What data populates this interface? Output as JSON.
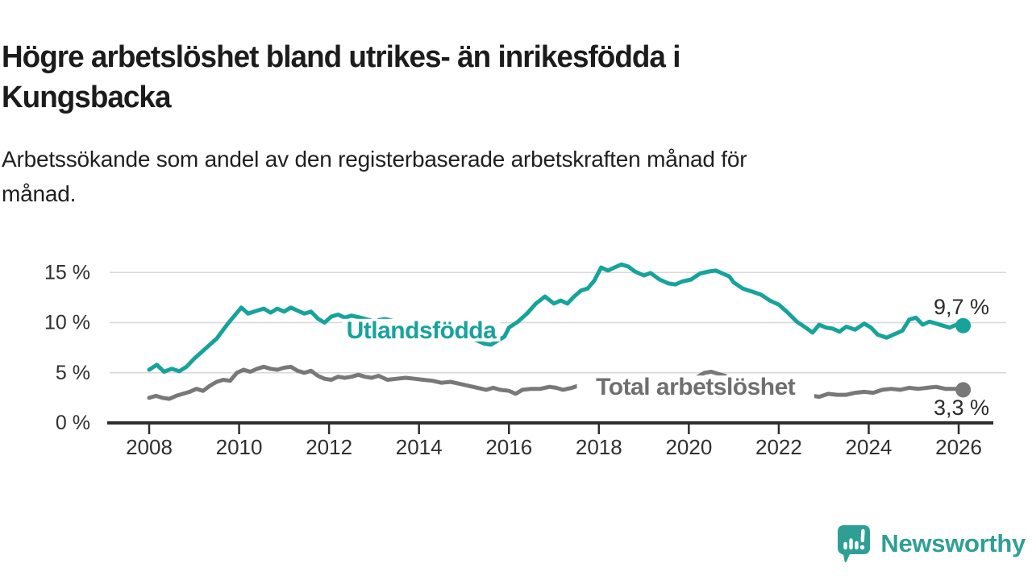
{
  "header": {
    "title_lines": [
      "Högre arbetslöshet bland utrikes- än inrikesfödda i",
      "Kungsbacka"
    ],
    "subtitle_lines": [
      "Arbetssökande som andel av den registerbaserade arbetskraften månad för",
      "månad."
    ]
  },
  "chart_data": {
    "type": "line",
    "x_axis": {
      "unit": "year",
      "ticks": [
        2008,
        2010,
        2012,
        2014,
        2016,
        2018,
        2020,
        2022,
        2024,
        2026
      ],
      "range": [
        2007.1,
        2026.8
      ]
    },
    "y_axis": {
      "unit": "%",
      "tick_labels": [
        {
          "value": 0,
          "label": "0 %"
        },
        {
          "value": 5,
          "label": "5 %"
        },
        {
          "value": 10,
          "label": "10 %"
        },
        {
          "value": 15,
          "label": "15 %"
        }
      ],
      "gridlines": [
        5,
        10,
        15
      ],
      "range": [
        0,
        16.5
      ],
      "grid_on": true
    },
    "series": [
      {
        "name": "Utlandsfödda",
        "color": "#16a39b",
        "line_label": {
          "text": "Utlandsfödda",
          "x": 2014.05,
          "y": 9.25
        },
        "end_label": {
          "text": "9,7 %",
          "position": "above"
        },
        "end_value": 9.7,
        "points": [
          [
            2008.0,
            5.3
          ],
          [
            2008.17,
            5.8
          ],
          [
            2008.33,
            5.1
          ],
          [
            2008.5,
            5.4
          ],
          [
            2008.67,
            5.15
          ],
          [
            2008.83,
            5.6
          ],
          [
            2009.0,
            6.4
          ],
          [
            2009.25,
            7.4
          ],
          [
            2009.5,
            8.4
          ],
          [
            2009.75,
            9.9
          ],
          [
            2010.05,
            11.5
          ],
          [
            2010.2,
            10.9
          ],
          [
            2010.4,
            11.2
          ],
          [
            2010.55,
            11.4
          ],
          [
            2010.7,
            11.0
          ],
          [
            2010.85,
            11.4
          ],
          [
            2011.0,
            11.1
          ],
          [
            2011.15,
            11.5
          ],
          [
            2011.3,
            11.2
          ],
          [
            2011.45,
            10.9
          ],
          [
            2011.6,
            11.1
          ],
          [
            2011.75,
            10.4
          ],
          [
            2011.9,
            10.0
          ],
          [
            2012.05,
            10.6
          ],
          [
            2012.2,
            10.8
          ],
          [
            2012.35,
            10.5
          ],
          [
            2012.5,
            10.7
          ],
          [
            2012.7,
            10.5
          ],
          [
            2012.85,
            10.3
          ],
          [
            2013.0,
            10.2
          ],
          [
            2013.25,
            10.35
          ],
          [
            2013.5,
            10.1
          ],
          [
            2013.75,
            9.8
          ],
          [
            2014.0,
            9.6
          ],
          [
            2014.25,
            9.4
          ],
          [
            2014.5,
            9.2
          ],
          [
            2014.75,
            9.0
          ],
          [
            2015.0,
            8.8
          ],
          [
            2015.25,
            8.3
          ],
          [
            2015.45,
            7.9
          ],
          [
            2015.6,
            7.8
          ],
          [
            2015.75,
            8.2
          ],
          [
            2015.9,
            8.6
          ],
          [
            2016.0,
            9.5
          ],
          [
            2016.2,
            10.1
          ],
          [
            2016.4,
            10.9
          ],
          [
            2016.6,
            11.9
          ],
          [
            2016.8,
            12.6
          ],
          [
            2017.0,
            11.9
          ],
          [
            2017.15,
            12.2
          ],
          [
            2017.3,
            11.9
          ],
          [
            2017.45,
            12.6
          ],
          [
            2017.6,
            13.2
          ],
          [
            2017.75,
            13.4
          ],
          [
            2017.9,
            14.2
          ],
          [
            2018.05,
            15.5
          ],
          [
            2018.2,
            15.2
          ],
          [
            2018.35,
            15.5
          ],
          [
            2018.5,
            15.8
          ],
          [
            2018.65,
            15.6
          ],
          [
            2018.8,
            15.1
          ],
          [
            2019.0,
            14.7
          ],
          [
            2019.15,
            14.95
          ],
          [
            2019.35,
            14.3
          ],
          [
            2019.55,
            13.9
          ],
          [
            2019.7,
            13.8
          ],
          [
            2019.85,
            14.1
          ],
          [
            2020.05,
            14.3
          ],
          [
            2020.25,
            14.9
          ],
          [
            2020.45,
            15.1
          ],
          [
            2020.6,
            15.2
          ],
          [
            2020.75,
            14.9
          ],
          [
            2020.9,
            14.6
          ],
          [
            2021.0,
            14.0
          ],
          [
            2021.2,
            13.4
          ],
          [
            2021.4,
            13.1
          ],
          [
            2021.6,
            12.8
          ],
          [
            2021.8,
            12.2
          ],
          [
            2022.0,
            11.8
          ],
          [
            2022.2,
            11.0
          ],
          [
            2022.4,
            10.1
          ],
          [
            2022.6,
            9.5
          ],
          [
            2022.75,
            9.0
          ],
          [
            2022.9,
            9.8
          ],
          [
            2023.05,
            9.5
          ],
          [
            2023.2,
            9.4
          ],
          [
            2023.35,
            9.1
          ],
          [
            2023.5,
            9.6
          ],
          [
            2023.7,
            9.3
          ],
          [
            2023.9,
            9.9
          ],
          [
            2024.05,
            9.5
          ],
          [
            2024.2,
            8.8
          ],
          [
            2024.4,
            8.5
          ],
          [
            2024.55,
            8.8
          ],
          [
            2024.75,
            9.2
          ],
          [
            2024.9,
            10.3
          ],
          [
            2025.05,
            10.5
          ],
          [
            2025.2,
            9.8
          ],
          [
            2025.35,
            10.1
          ],
          [
            2025.5,
            9.9
          ],
          [
            2025.65,
            9.7
          ],
          [
            2025.8,
            9.5
          ],
          [
            2025.95,
            9.8
          ],
          [
            2026.1,
            9.7
          ]
        ]
      },
      {
        "name": "Total arbetslöshet",
        "color": "#787878",
        "label_color": "#6f6f6f",
        "line_label": {
          "text": "Total arbetslöshet",
          "x": 2020.15,
          "y": 3.6
        },
        "end_label": {
          "text": "3,3 %",
          "position": "below"
        },
        "end_value": 3.3,
        "points": [
          [
            2008.0,
            2.5
          ],
          [
            2008.15,
            2.7
          ],
          [
            2008.3,
            2.5
          ],
          [
            2008.45,
            2.4
          ],
          [
            2008.6,
            2.7
          ],
          [
            2008.75,
            2.9
          ],
          [
            2008.9,
            3.1
          ],
          [
            2009.05,
            3.4
          ],
          [
            2009.2,
            3.2
          ],
          [
            2009.35,
            3.7
          ],
          [
            2009.5,
            4.1
          ],
          [
            2009.65,
            4.3
          ],
          [
            2009.8,
            4.2
          ],
          [
            2009.95,
            5.0
          ],
          [
            2010.1,
            5.3
          ],
          [
            2010.25,
            5.1
          ],
          [
            2010.4,
            5.4
          ],
          [
            2010.55,
            5.6
          ],
          [
            2010.7,
            5.4
          ],
          [
            2010.85,
            5.3
          ],
          [
            2011.0,
            5.5
          ],
          [
            2011.15,
            5.6
          ],
          [
            2011.3,
            5.2
          ],
          [
            2011.45,
            5.0
          ],
          [
            2011.6,
            5.2
          ],
          [
            2011.75,
            4.7
          ],
          [
            2011.9,
            4.4
          ],
          [
            2012.05,
            4.3
          ],
          [
            2012.2,
            4.6
          ],
          [
            2012.35,
            4.5
          ],
          [
            2012.5,
            4.6
          ],
          [
            2012.65,
            4.8
          ],
          [
            2012.8,
            4.6
          ],
          [
            2012.95,
            4.5
          ],
          [
            2013.1,
            4.7
          ],
          [
            2013.3,
            4.3
          ],
          [
            2013.5,
            4.4
          ],
          [
            2013.7,
            4.5
          ],
          [
            2013.9,
            4.4
          ],
          [
            2014.1,
            4.3
          ],
          [
            2014.3,
            4.2
          ],
          [
            2014.5,
            4.0
          ],
          [
            2014.7,
            4.1
          ],
          [
            2014.9,
            3.9
          ],
          [
            2015.1,
            3.7
          ],
          [
            2015.3,
            3.5
          ],
          [
            2015.5,
            3.3
          ],
          [
            2015.65,
            3.5
          ],
          [
            2015.8,
            3.3
          ],
          [
            2016.0,
            3.2
          ],
          [
            2016.15,
            2.9
          ],
          [
            2016.3,
            3.3
          ],
          [
            2016.5,
            3.4
          ],
          [
            2016.7,
            3.4
          ],
          [
            2016.9,
            3.6
          ],
          [
            2017.05,
            3.5
          ],
          [
            2017.2,
            3.3
          ],
          [
            2017.4,
            3.5
          ],
          [
            2017.6,
            3.8
          ],
          [
            2017.8,
            3.7
          ],
          [
            2018.0,
            3.8
          ],
          [
            2018.25,
            3.7
          ],
          [
            2018.5,
            3.6
          ],
          [
            2018.75,
            3.5
          ],
          [
            2019.0,
            3.6
          ],
          [
            2019.25,
            3.5
          ],
          [
            2019.5,
            3.6
          ],
          [
            2019.75,
            3.7
          ],
          [
            2020.0,
            3.9
          ],
          [
            2020.2,
            4.6
          ],
          [
            2020.35,
            5.0
          ],
          [
            2020.5,
            5.1
          ],
          [
            2020.65,
            4.9
          ],
          [
            2020.8,
            4.7
          ],
          [
            2021.0,
            4.4
          ],
          [
            2021.25,
            4.1
          ],
          [
            2021.5,
            3.8
          ],
          [
            2021.75,
            3.4
          ],
          [
            2022.0,
            3.1
          ],
          [
            2022.25,
            2.9
          ],
          [
            2022.5,
            2.8
          ],
          [
            2022.7,
            2.75
          ],
          [
            2022.9,
            2.6
          ],
          [
            2023.1,
            2.9
          ],
          [
            2023.3,
            2.8
          ],
          [
            2023.5,
            2.8
          ],
          [
            2023.7,
            3.0
          ],
          [
            2023.9,
            3.1
          ],
          [
            2024.1,
            3.0
          ],
          [
            2024.3,
            3.3
          ],
          [
            2024.5,
            3.4
          ],
          [
            2024.7,
            3.3
          ],
          [
            2024.9,
            3.5
          ],
          [
            2025.1,
            3.4
          ],
          [
            2025.3,
            3.5
          ],
          [
            2025.5,
            3.6
          ],
          [
            2025.7,
            3.4
          ],
          [
            2025.9,
            3.4
          ],
          [
            2026.1,
            3.3
          ]
        ]
      }
    ],
    "colors": {
      "axis": "#2e2e2e",
      "gridline": "#d8d8d8",
      "tick_text": "#2f2f2f",
      "annotation_text": "#2b2b2b"
    }
  },
  "footer": {
    "brand": "Newsworthy",
    "brand_color": "#2f9f96",
    "logo_icon": "bar-chart-exclamation-bubble-icon"
  }
}
